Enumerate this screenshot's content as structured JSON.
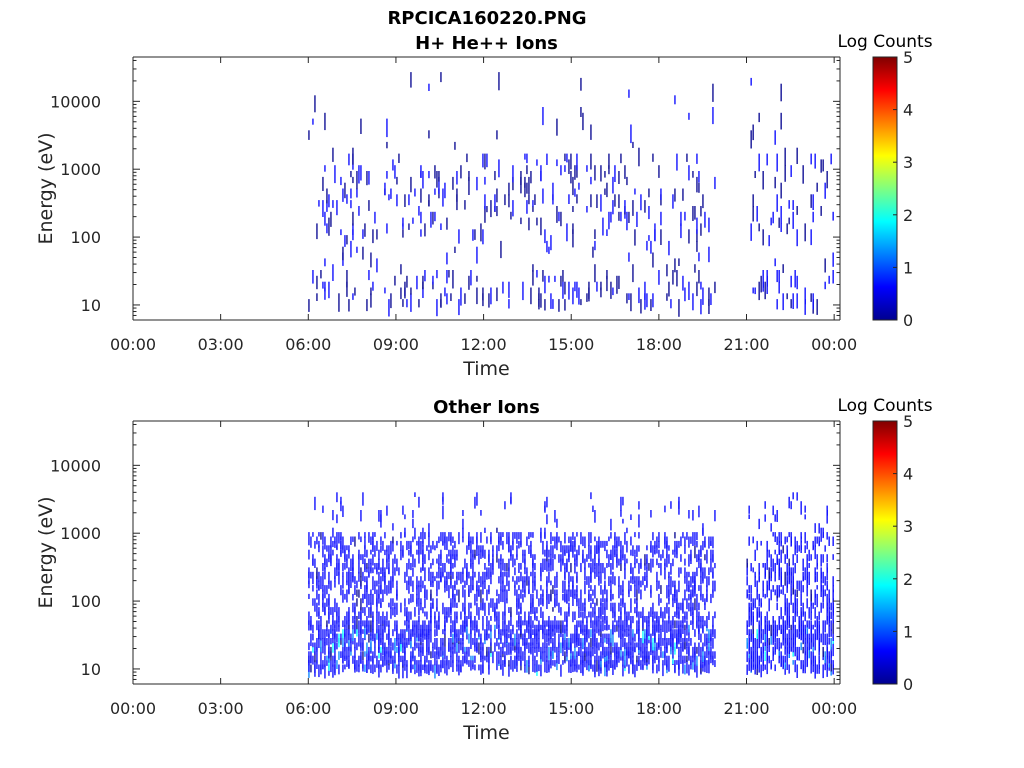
{
  "figure_title": "RPCICA160220.PNG",
  "colors": {
    "axis": "#262626",
    "background": "#ffffff",
    "colormap": [
      "#00008f",
      "#0000ff",
      "#0080ff",
      "#00ffff",
      "#80ff80",
      "#ffff00",
      "#ff8000",
      "#ff0000",
      "#800000"
    ]
  },
  "chart_data": [
    {
      "type": "heatmap",
      "title": "H+ He++ Ions",
      "xlabel": "Time",
      "ylabel": "Energy (eV)",
      "y_scale": "log",
      "ylim": [
        6,
        45000
      ],
      "xlim_hours": [
        0,
        24.2
      ],
      "x_ticks": [
        "00:00",
        "03:00",
        "06:00",
        "09:00",
        "12:00",
        "15:00",
        "18:00",
        "21:00",
        "00:00"
      ],
      "y_ticks": [
        "10",
        "100",
        "1000",
        "10000"
      ],
      "colorbar": {
        "label": "Log Counts",
        "range": [
          0,
          5
        ],
        "ticks": [
          "0",
          "1",
          "2",
          "3",
          "4",
          "5"
        ]
      },
      "data_segments_hours": [
        [
          6.0,
          19.95
        ],
        [
          21.0,
          23.95
        ]
      ],
      "energy_range_ev": [
        10,
        27000
      ],
      "dominant_log_counts": 0.1
    },
    {
      "type": "heatmap",
      "title": "Other Ions",
      "xlabel": "Time",
      "ylabel": "Energy (eV)",
      "y_scale": "log",
      "ylim": [
        6,
        45000
      ],
      "xlim_hours": [
        0,
        24.2
      ],
      "x_ticks": [
        "00:00",
        "03:00",
        "06:00",
        "09:00",
        "12:00",
        "15:00",
        "18:00",
        "21:00",
        "00:00"
      ],
      "y_ticks": [
        "10",
        "100",
        "1000",
        "10000"
      ],
      "colorbar": {
        "label": "Log Counts",
        "range": [
          0,
          5
        ],
        "ticks": [
          "0",
          "1",
          "2",
          "3",
          "4",
          "5"
        ]
      },
      "data_segments_hours": [
        [
          6.0,
          19.95
        ],
        [
          21.0,
          23.95
        ]
      ],
      "energy_range_ev": [
        10,
        4000
      ],
      "dominant_log_counts": 0.3,
      "peak_log_counts": 1.7
    }
  ]
}
